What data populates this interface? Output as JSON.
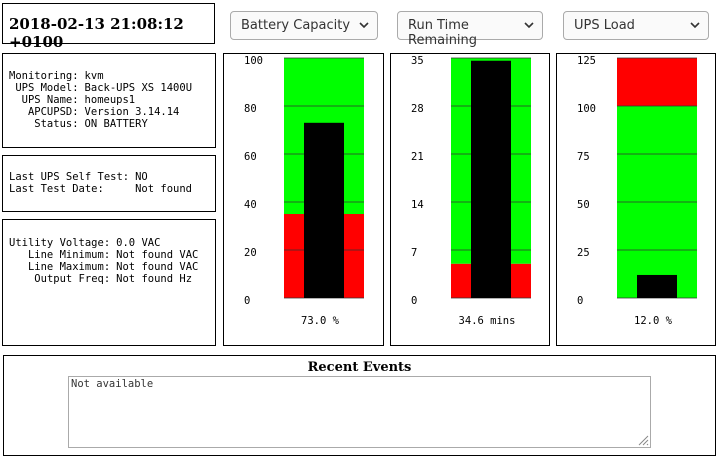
{
  "header": {
    "timestamp": "2018-02-13 21:08:12 +0100"
  },
  "selectors": [
    "Battery Capacity",
    "Run Time Remaining",
    "UPS Load"
  ],
  "status": {
    "rows": [
      [
        "Monitoring:",
        "kvm"
      ],
      [
        "UPS Model:",
        "Back-UPS XS 1400U"
      ],
      [
        "UPS Name:",
        "homeups1"
      ],
      [
        "APCUPSD:",
        "Version 3.14.14"
      ],
      [
        "Status:",
        "ON BATTERY"
      ]
    ]
  },
  "self_test": {
    "rows": [
      [
        "Last UPS Self Test:",
        "NO"
      ],
      [
        "Last Test Date:",
        "Not found"
      ]
    ]
  },
  "voltage": {
    "rows": [
      [
        "Utility Voltage:",
        "0.0 VAC"
      ],
      [
        "Line Minimum:",
        "Not found VAC"
      ],
      [
        "Line Maximum:",
        "Not found VAC"
      ],
      [
        "Output Freq:",
        "Not found Hz"
      ]
    ]
  },
  "gauges": [
    {
      "ylim": [
        0,
        100
      ],
      "yticks": [
        0,
        20,
        40,
        60,
        80,
        100
      ],
      "value": 73.0,
      "value_label": "73.0 %",
      "zones": [
        {
          "from": 0,
          "to": 35,
          "color": "#ff0000"
        },
        {
          "from": 35,
          "to": 100,
          "color": "#00ff00"
        }
      ]
    },
    {
      "ylim": [
        0,
        35
      ],
      "yticks": [
        0,
        7,
        14,
        21,
        28,
        35
      ],
      "value": 34.6,
      "value_label": "34.6 mins",
      "zones": [
        {
          "from": 0,
          "to": 5,
          "color": "#ff0000"
        },
        {
          "from": 5,
          "to": 35,
          "color": "#00ff00"
        }
      ]
    },
    {
      "ylim": [
        0,
        125
      ],
      "yticks": [
        0,
        25,
        50,
        75,
        100,
        125
      ],
      "value": 12.0,
      "value_label": "12.0 %",
      "zones": [
        {
          "from": 0,
          "to": 100,
          "color": "#00ff00"
        },
        {
          "from": 100,
          "to": 125,
          "color": "#ff0000"
        }
      ]
    }
  ],
  "events": {
    "title": "Recent Events",
    "text": "Not available"
  }
}
